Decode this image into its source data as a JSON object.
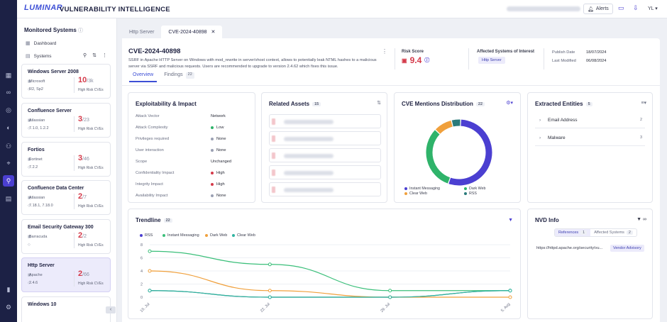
{
  "app": {
    "logo": "LUMINAR",
    "title": "VULNERABILITY INTELLIGENCE"
  },
  "topbar": {
    "alerts_label": "Alerts",
    "user_initials": "YL"
  },
  "rail": [
    "grid-icon",
    "binoculars-icon",
    "compass-icon",
    "radar-icon",
    "users-icon",
    "location-icon",
    "link-icon",
    "server-icon",
    "bar-chart-icon",
    "gear-icon"
  ],
  "sidebar": {
    "title": "Monitored Systems",
    "nav_dashboard": "Dashboard",
    "nav_systems": "Systems",
    "risk_label": "High Risk CVEs",
    "systems": [
      {
        "name": "Windows Server 2008",
        "vendor": "Microsoft",
        "version": "R2, Sp2",
        "high": "10",
        "total": "/3k"
      },
      {
        "name": "Confluence Server",
        "vendor": "Atlassian",
        "version": "7.1.0, 1.2.2",
        "high": "3",
        "total": "/23"
      },
      {
        "name": "Fortios",
        "vendor": "Fortinet",
        "version": "7.2.2",
        "high": "3",
        "total": "/46"
      },
      {
        "name": "Confluence Data Center",
        "vendor": "Atlassian",
        "version": "7.18.1, 7.18.0",
        "high": "2",
        "total": "/7"
      },
      {
        "name": "Email Security Gateway 300",
        "vendor": "Barracuda",
        "version": "",
        "high": "2",
        "total": "/2"
      },
      {
        "name": "Http Server",
        "vendor": "Apache",
        "version": "2.4.6",
        "high": "2",
        "total": "/66"
      },
      {
        "name": "Windows 10",
        "vendor": "",
        "version": "",
        "high": "",
        "total": ""
      }
    ]
  },
  "tabs": [
    {
      "label": "Http Server"
    },
    {
      "label": "CVE-2024-40898"
    }
  ],
  "cve": {
    "id": "CVE-2024-40898",
    "description": "SSRF in Apache HTTP Server on Windows with mod_rewrite in server/vhost context, allows to potentially leak NTML hashes to a malicious server via SSRF and malicious requests. Users are recommended to upgrade to version 2.4.62 which fixes this issue.",
    "risk_label": "Risk Score",
    "risk_score": "9.4",
    "affected_label": "Affected Systems of Interest",
    "affected_tag": "Http Server",
    "publish_label": "Publish Date",
    "publish_value": "18/07/2024",
    "modified_label": "Last Modified",
    "modified_value": "06/08/2024"
  },
  "subtabs": {
    "overview": "Overview",
    "findings": "Findings",
    "findings_count": "22"
  },
  "exploitability": {
    "title": "Exploitability & Impact",
    "rows": [
      {
        "k": "Attack Vector",
        "v": "Network",
        "color": ""
      },
      {
        "k": "Attack Complexity",
        "v": "Low",
        "color": "#2fb36a"
      },
      {
        "k": "Privileges required",
        "v": "None",
        "color": "#9aa0b3"
      },
      {
        "k": "User interaction",
        "v": "None",
        "color": "#9aa0b3"
      },
      {
        "k": "Scope",
        "v": "Unchanged",
        "color": ""
      },
      {
        "k": "Confidentiality Impact",
        "v": "High",
        "color": "#d43a4a"
      },
      {
        "k": "Integrity Impact",
        "v": "High",
        "color": "#d43a4a"
      },
      {
        "k": "Availability Impact",
        "v": "None",
        "color": "#9aa0b3"
      }
    ]
  },
  "related_assets": {
    "title": "Related Assets",
    "count": "15"
  },
  "mentions": {
    "title": "CVE Mentions Distribution",
    "count": "22",
    "legend": [
      {
        "name": "Instant Messaging",
        "color": "#4b3fd1"
      },
      {
        "name": "Dark Web",
        "color": "#2fb36a"
      },
      {
        "name": "Clear Web",
        "color": "#f0a03c"
      },
      {
        "name": "RSS",
        "color": "#2a7a7a"
      }
    ]
  },
  "entities": {
    "title": "Extracted Entities",
    "count": "5",
    "items": [
      {
        "name": "Email Address",
        "count": "2"
      },
      {
        "name": "Malware",
        "count": "3"
      }
    ]
  },
  "trendline": {
    "title": "Trendline",
    "count": "22"
  },
  "nvd": {
    "title": "NVD Info",
    "tab_refs": "References",
    "tab_refs_count": "1",
    "tab_sys": "Affected Systems",
    "tab_sys_count": "2",
    "url": "https://httpd.apache.org/security/vu...",
    "badge": "Vendor Advisory"
  },
  "chart_data": {
    "type": "line",
    "title": "Trendline",
    "x": [
      "15. Jul",
      "22. Jul",
      "29. Jul",
      "5. Aug"
    ],
    "ylim": [
      0,
      8
    ],
    "yticks": [
      0,
      2,
      4,
      6,
      8
    ],
    "series": [
      {
        "name": "RSS",
        "color": "#2a7a7a",
        "values": [
          1,
          0,
          0,
          1
        ]
      },
      {
        "name": "Instant Messaging",
        "color": "#3bbf7a",
        "values": [
          7,
          5,
          1,
          1
        ]
      },
      {
        "name": "Dark Web",
        "color": "#f0a03c",
        "values": [
          4,
          1,
          0,
          0
        ]
      },
      {
        "name": "Clear Web",
        "color": "#2fb3a0",
        "values": [
          1,
          0,
          0,
          1
        ]
      }
    ],
    "legend": "top-left",
    "grid": true
  },
  "donut_data": {
    "type": "pie",
    "categories": [
      "Instant Messaging",
      "Dark Web",
      "Clear Web",
      "RSS"
    ],
    "values": [
      12,
      7,
      2,
      1
    ]
  }
}
